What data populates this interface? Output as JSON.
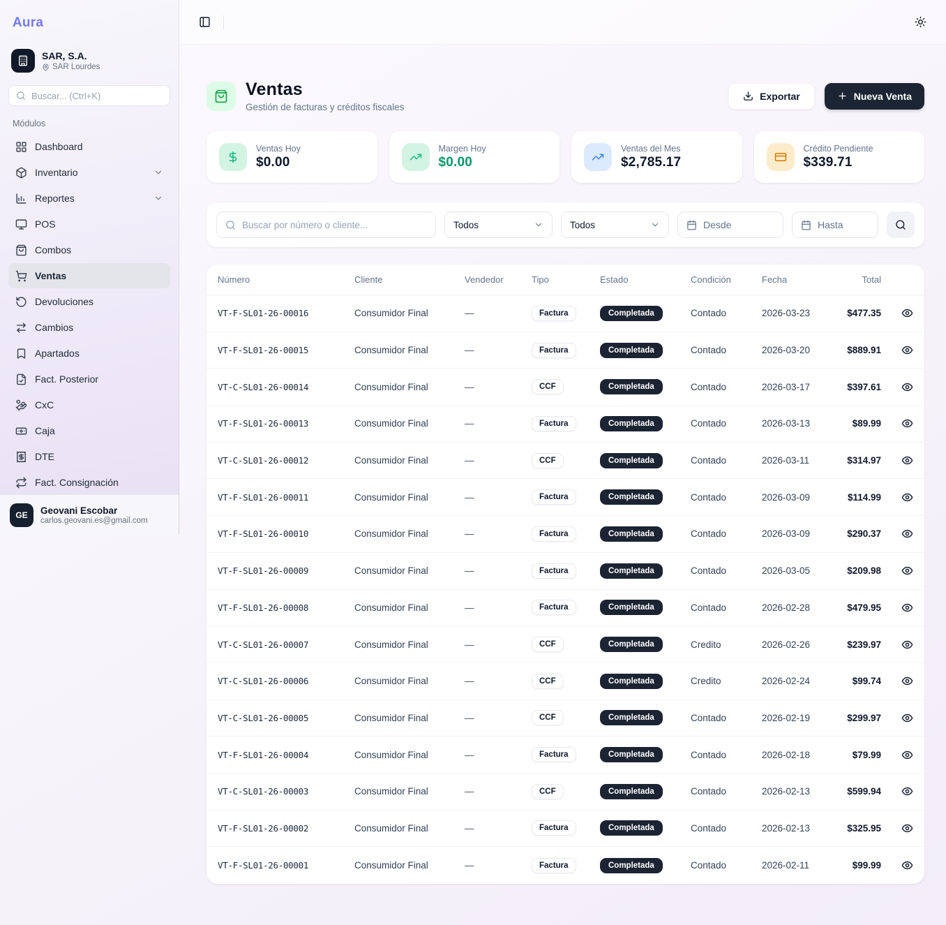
{
  "app": {
    "logo": "Aura"
  },
  "sidebar": {
    "company": {
      "name": "SAR, S.A.",
      "branch": "SAR Lourdes"
    },
    "search_placeholder": "Buscar... (Ctrl+K)",
    "section_label": "Módulos",
    "nav": [
      {
        "label": "Dashboard",
        "icon": "dashboard-grid-icon",
        "expandable": false,
        "active": false
      },
      {
        "label": "Inventario",
        "icon": "package-icon",
        "expandable": true,
        "active": false
      },
      {
        "label": "Reportes",
        "icon": "bar-chart-icon",
        "expandable": true,
        "active": false
      },
      {
        "label": "POS",
        "icon": "monitor-icon",
        "expandable": false,
        "active": false
      },
      {
        "label": "Combos",
        "icon": "shopping-bag-icon",
        "expandable": false,
        "active": false
      },
      {
        "label": "Ventas",
        "icon": "shopping-cart-icon",
        "expandable": false,
        "active": true
      },
      {
        "label": "Devoluciones",
        "icon": "rotate-ccw-icon",
        "expandable": false,
        "active": false
      },
      {
        "label": "Cambios",
        "icon": "arrows-swap-icon",
        "expandable": false,
        "active": false
      },
      {
        "label": "Apartados",
        "icon": "bookmark-icon",
        "expandable": false,
        "active": false
      },
      {
        "label": "Fact. Posterior",
        "icon": "file-check-icon",
        "expandable": false,
        "active": false
      },
      {
        "label": "CxC",
        "icon": "hand-coins-icon",
        "expandable": false,
        "active": false
      },
      {
        "label": "Caja",
        "icon": "banknote-icon",
        "expandable": false,
        "active": false
      },
      {
        "label": "DTE",
        "icon": "receipt-icon",
        "expandable": false,
        "active": false
      },
      {
        "label": "Fact. Consignación",
        "icon": "repeat-arrows-icon",
        "expandable": false,
        "active": false
      }
    ],
    "user": {
      "initials": "GE",
      "name": "Geovani Escobar",
      "email": "carlos.geovani.es@gmail.com"
    }
  },
  "header": {
    "title": "Ventas",
    "subtitle": "Gestión de facturas y créditos fiscales",
    "export_label": "Exportar",
    "new_sale_label": "Nueva Venta"
  },
  "stats": {
    "cards": [
      {
        "label": "Ventas Hoy",
        "value": "$0.00",
        "icon": "dollar-icon",
        "tone": "green"
      },
      {
        "label": "Margen Hoy",
        "value": "$0.00",
        "icon": "trending-up-icon",
        "tone": "green"
      },
      {
        "label": "Ventas del Mes",
        "value": "$2,785.17",
        "icon": "trending-up-icon",
        "tone": "blue"
      },
      {
        "label": "Crédito Pendiente",
        "value": "$339.71",
        "icon": "credit-card-icon",
        "tone": "amber"
      }
    ]
  },
  "filters": {
    "search_placeholder": "Buscar por número o cliente...",
    "type_filter_value": "Todos",
    "status_filter_value": "Todos",
    "date_from_placeholder": "Desde",
    "date_to_placeholder": "Hasta"
  },
  "table": {
    "columns": [
      "Número",
      "Cliente",
      "Vendedor",
      "Tipo",
      "Estado",
      "Condición",
      "Fecha",
      "Total"
    ],
    "rows": [
      {
        "numero": "VT-F-SL01-26-00016",
        "cliente": "Consumidor Final",
        "vendedor": "—",
        "tipo": "Factura",
        "estado": "Completada",
        "condicion": "Contado",
        "fecha": "2026-03-23",
        "total": "$477.35"
      },
      {
        "numero": "VT-F-SL01-26-00015",
        "cliente": "Consumidor Final",
        "vendedor": "—",
        "tipo": "Factura",
        "estado": "Completada",
        "condicion": "Contado",
        "fecha": "2026-03-20",
        "total": "$889.91"
      },
      {
        "numero": "VT-C-SL01-26-00014",
        "cliente": "Consumidor Final",
        "vendedor": "—",
        "tipo": "CCF",
        "estado": "Completada",
        "condicion": "Contado",
        "fecha": "2026-03-17",
        "total": "$397.61"
      },
      {
        "numero": "VT-F-SL01-26-00013",
        "cliente": "Consumidor Final",
        "vendedor": "—",
        "tipo": "Factura",
        "estado": "Completada",
        "condicion": "Contado",
        "fecha": "2026-03-13",
        "total": "$89.99"
      },
      {
        "numero": "VT-C-SL01-26-00012",
        "cliente": "Consumidor Final",
        "vendedor": "—",
        "tipo": "CCF",
        "estado": "Completada",
        "condicion": "Contado",
        "fecha": "2026-03-11",
        "total": "$314.97"
      },
      {
        "numero": "VT-F-SL01-26-00011",
        "cliente": "Consumidor Final",
        "vendedor": "—",
        "tipo": "Factura",
        "estado": "Completada",
        "condicion": "Contado",
        "fecha": "2026-03-09",
        "total": "$114.99"
      },
      {
        "numero": "VT-F-SL01-26-00010",
        "cliente": "Consumidor Final",
        "vendedor": "—",
        "tipo": "Factura",
        "estado": "Completada",
        "condicion": "Contado",
        "fecha": "2026-03-09",
        "total": "$290.37"
      },
      {
        "numero": "VT-F-SL01-26-00009",
        "cliente": "Consumidor Final",
        "vendedor": "—",
        "tipo": "Factura",
        "estado": "Completada",
        "condicion": "Contado",
        "fecha": "2026-03-05",
        "total": "$209.98"
      },
      {
        "numero": "VT-F-SL01-26-00008",
        "cliente": "Consumidor Final",
        "vendedor": "—",
        "tipo": "Factura",
        "estado": "Completada",
        "condicion": "Contado",
        "fecha": "2026-02-28",
        "total": "$479.95"
      },
      {
        "numero": "VT-C-SL01-26-00007",
        "cliente": "Consumidor Final",
        "vendedor": "—",
        "tipo": "CCF",
        "estado": "Completada",
        "condicion": "Credito",
        "fecha": "2026-02-26",
        "total": "$239.97"
      },
      {
        "numero": "VT-C-SL01-26-00006",
        "cliente": "Consumidor Final",
        "vendedor": "—",
        "tipo": "CCF",
        "estado": "Completada",
        "condicion": "Credito",
        "fecha": "2026-02-24",
        "total": "$99.74"
      },
      {
        "numero": "VT-C-SL01-26-00005",
        "cliente": "Consumidor Final",
        "vendedor": "—",
        "tipo": "CCF",
        "estado": "Completada",
        "condicion": "Contado",
        "fecha": "2026-02-19",
        "total": "$299.97"
      },
      {
        "numero": "VT-F-SL01-26-00004",
        "cliente": "Consumidor Final",
        "vendedor": "—",
        "tipo": "Factura",
        "estado": "Completada",
        "condicion": "Contado",
        "fecha": "2026-02-18",
        "total": "$79.99"
      },
      {
        "numero": "VT-C-SL01-26-00003",
        "cliente": "Consumidor Final",
        "vendedor": "—",
        "tipo": "CCF",
        "estado": "Completada",
        "condicion": "Contado",
        "fecha": "2026-02-13",
        "total": "$599.94"
      },
      {
        "numero": "VT-F-SL01-26-00002",
        "cliente": "Consumidor Final",
        "vendedor": "—",
        "tipo": "Factura",
        "estado": "Completada",
        "condicion": "Contado",
        "fecha": "2026-02-13",
        "total": "$325.95"
      },
      {
        "numero": "VT-F-SL01-26-00001",
        "cliente": "Consumidor Final",
        "vendedor": "—",
        "tipo": "Factura",
        "estado": "Completada",
        "condicion": "Contado",
        "fecha": "2026-02-11",
        "total": "$99.99"
      }
    ]
  },
  "colors": {
    "accent_dark": "#1c2534",
    "estado_badge_bg": "#1c2433",
    "green": "#10b981",
    "green_value": "#059669",
    "blue": "#3b82f6",
    "amber": "#d97706",
    "logo_gradient_start": "#6d7bf2",
    "logo_gradient_end": "#a855f7"
  }
}
